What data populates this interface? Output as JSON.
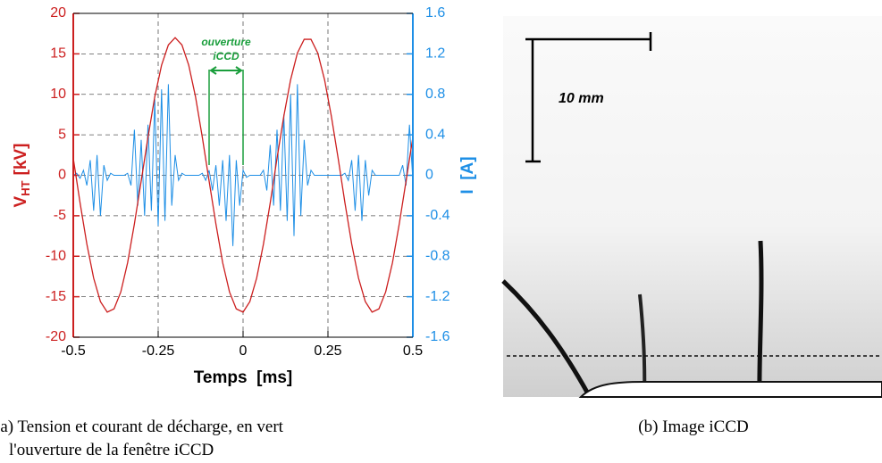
{
  "chart_data": {
    "type": "line",
    "xlabel": "Temps  [ms]",
    "ylabel": "V",
    "ylabel_sub": "HT",
    "ylabel_unit": "[kV]",
    "y2label": "I  [A]",
    "xlim": [
      -0.5,
      0.5
    ],
    "xticks": [
      -0.5,
      -0.25,
      0,
      0.25,
      0.5
    ],
    "ylim": [
      -20,
      20
    ],
    "yticks": [
      -20,
      -15,
      -10,
      -5,
      0,
      5,
      10,
      15,
      20
    ],
    "y2lim": [
      -1.6,
      1.6
    ],
    "y2ticks": [
      -1.6,
      -1.2,
      -0.8,
      -0.4,
      0,
      0.4,
      0.8,
      1.2,
      1.6
    ],
    "grid": true,
    "ycolor": "#cc1f1f",
    "y2color": "#1e8fe6",
    "series": [
      {
        "color": "#cc1f1f",
        "x": [
          -0.5,
          -0.48,
          -0.46,
          -0.44,
          -0.42,
          -0.4,
          -0.38,
          -0.36,
          -0.34,
          -0.32,
          -0.3,
          -0.28,
          -0.26,
          -0.24,
          -0.22,
          -0.2,
          -0.18,
          -0.16,
          -0.14,
          -0.12,
          -0.1,
          -0.08,
          -0.06,
          -0.04,
          -0.02,
          0,
          0.02,
          0.04,
          0.06,
          0.08,
          0.1,
          0.12,
          0.14,
          0.16,
          0.18,
          0.2,
          0.22,
          0.24,
          0.26,
          0.28,
          0.3,
          0.32,
          0.34,
          0.36,
          0.38,
          0.4,
          0.42,
          0.44,
          0.46,
          0.48,
          0.5
        ],
        "values": [
          2.1,
          -3.4,
          -8.5,
          -12.7,
          -15.6,
          -16.9,
          -16.5,
          -14.4,
          -10.8,
          -6.0,
          -0.7,
          4.7,
          9.7,
          13.6,
          16.1,
          17,
          16.1,
          13.6,
          9.7,
          4.7,
          -0.7,
          -6.0,
          -10.8,
          -14.4,
          -16.5,
          -16.9,
          -15.6,
          -12.7,
          -8.5,
          -3.4,
          2.1,
          7.3,
          11.8,
          15.1,
          16.8,
          16.8,
          15.1,
          11.8,
          7.3,
          2.1,
          -3.4,
          -8.5,
          -12.7,
          -15.6,
          -16.9,
          -16.5,
          -14.4,
          -10.8,
          -6.0,
          -0.7,
          4.7
        ]
      },
      {
        "color": "#1e8fe6",
        "axis": "y2",
        "x": [
          -0.5,
          -0.49,
          -0.48,
          -0.47,
          -0.46,
          -0.45,
          -0.44,
          -0.43,
          -0.42,
          -0.41,
          -0.4,
          -0.39,
          -0.38,
          -0.37,
          -0.36,
          -0.35,
          -0.34,
          -0.33,
          -0.32,
          -0.31,
          -0.3,
          -0.29,
          -0.28,
          -0.27,
          -0.26,
          -0.25,
          -0.24,
          -0.23,
          -0.22,
          -0.21,
          -0.2,
          -0.19,
          -0.18,
          -0.17,
          -0.16,
          -0.15,
          -0.14,
          -0.13,
          -0.12,
          -0.11,
          -0.1,
          -0.09,
          -0.08,
          -0.07,
          -0.06,
          -0.05,
          -0.04,
          -0.03,
          -0.02,
          -0.01,
          0,
          0.01,
          0.02,
          0.03,
          0.04,
          0.05,
          0.06,
          0.07,
          0.08,
          0.09,
          0.1,
          0.11,
          0.12,
          0.13,
          0.14,
          0.15,
          0.16,
          0.17,
          0.18,
          0.19,
          0.2,
          0.21,
          0.22,
          0.23,
          0.24,
          0.25,
          0.26,
          0.27,
          0.28,
          0.29,
          0.3,
          0.31,
          0.32,
          0.33,
          0.34,
          0.35,
          0.36,
          0.37,
          0.38,
          0.39,
          0.4,
          0.41,
          0.42,
          0.43,
          0.44,
          0.45,
          0.46,
          0.47,
          0.48,
          0.49,
          0.5
        ],
        "values": [
          0,
          0.02,
          -0.03,
          0.05,
          -0.1,
          0.15,
          -0.35,
          0.2,
          -0.4,
          0.1,
          -0.05,
          0.02,
          0,
          0,
          0,
          0,
          0.02,
          -0.1,
          0.45,
          -0.3,
          0.35,
          -0.4,
          0.5,
          -0.35,
          0.75,
          -0.5,
          0.85,
          -0.45,
          0.9,
          -0.3,
          0.2,
          -0.05,
          0.02,
          0,
          0,
          0,
          0,
          0,
          0.02,
          -0.05,
          0.05,
          -0.15,
          0.1,
          -0.3,
          0.15,
          -0.45,
          0.2,
          -0.7,
          0.15,
          -0.3,
          0.05,
          -0.02,
          0,
          0,
          0,
          0,
          0.05,
          -0.15,
          0.3,
          -0.3,
          0.45,
          -0.35,
          0.6,
          -0.45,
          0.8,
          -0.6,
          0.9,
          -0.4,
          0.35,
          -0.1,
          0.05,
          0,
          0,
          0,
          0,
          0,
          0,
          0,
          0,
          0,
          0.02,
          -0.05,
          0.15,
          -0.35,
          0.2,
          -0.45,
          0.15,
          -0.2,
          0.05,
          0,
          0,
          0,
          0,
          0,
          0,
          0,
          0,
          0.1,
          -0.1,
          0.5,
          -0.05
        ]
      }
    ],
    "annotation": {
      "lines": [
        "ouverture",
        "iCCD"
      ],
      "x": [
        -0.1,
        0
      ],
      "color": "#1a9e3c"
    }
  },
  "image": {
    "scale_label": "10 mm"
  },
  "captions": {
    "a": [
      "(a) Tension et courant de décharge, en vert",
      "l'ouverture de la fenêtre iCCD"
    ],
    "b": "(b) Image iCCD"
  }
}
